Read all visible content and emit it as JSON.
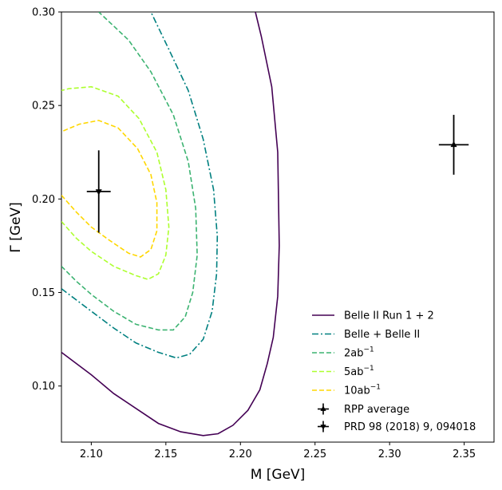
{
  "chart_data": {
    "type": "line",
    "xlabel": "M [GeV]",
    "ylabel": "Γ [GeV]",
    "xlim": [
      2.08,
      2.37
    ],
    "ylim": [
      0.07,
      0.3
    ],
    "xticks": [
      "2.10",
      "2.15",
      "2.20",
      "2.25",
      "2.30",
      "2.35"
    ],
    "xtick_values": [
      2.1,
      2.15,
      2.2,
      2.25,
      2.3,
      2.35
    ],
    "yticks": [
      "0.10",
      "0.15",
      "0.20",
      "0.25",
      "0.30"
    ],
    "ytick_values": [
      0.1,
      0.15,
      0.2,
      0.25,
      0.3
    ],
    "legend_position": "lower-right",
    "series": [
      {
        "name": "Belle II Run 1 + 2",
        "label_main": "Belle II Run 1 + 2",
        "label_sup": "",
        "color": "#440154",
        "dash": "solid",
        "points": [
          [
            2.08,
            0.118
          ],
          [
            2.1,
            0.106
          ],
          [
            2.115,
            0.096
          ],
          [
            2.13,
            0.088
          ],
          [
            2.145,
            0.08
          ],
          [
            2.16,
            0.0755
          ],
          [
            2.175,
            0.0735
          ],
          [
            2.185,
            0.0745
          ],
          [
            2.195,
            0.079
          ],
          [
            2.205,
            0.087
          ],
          [
            2.213,
            0.098
          ],
          [
            2.218,
            0.112
          ],
          [
            2.222,
            0.126
          ],
          [
            2.225,
            0.148
          ],
          [
            2.226,
            0.175
          ],
          [
            2.225,
            0.225
          ],
          [
            2.221,
            0.26
          ],
          [
            2.214,
            0.287
          ],
          [
            2.21,
            0.3
          ]
        ]
      },
      {
        "name": "Belle + Belle II",
        "label_main": "Belle + Belle II",
        "label_sup": "",
        "color": "#008080",
        "dash": "dashdot",
        "points": [
          [
            2.08,
            0.152
          ],
          [
            2.09,
            0.146
          ],
          [
            2.1,
            0.14
          ],
          [
            2.115,
            0.131
          ],
          [
            2.13,
            0.123
          ],
          [
            2.145,
            0.118
          ],
          [
            2.157,
            0.115
          ],
          [
            2.166,
            0.117
          ],
          [
            2.175,
            0.125
          ],
          [
            2.181,
            0.14
          ],
          [
            2.184,
            0.16
          ],
          [
            2.1845,
            0.18
          ],
          [
            2.182,
            0.205
          ],
          [
            2.175,
            0.232
          ],
          [
            2.165,
            0.258
          ],
          [
            2.152,
            0.28
          ],
          [
            2.14,
            0.3
          ]
        ]
      },
      {
        "name": "2ab^-1",
        "label_main": "2ab",
        "label_sup": "−1",
        "color": "#3cb371",
        "dash": "dashed",
        "points": [
          [
            2.08,
            0.164
          ],
          [
            2.09,
            0.156
          ],
          [
            2.1,
            0.149
          ],
          [
            2.115,
            0.14
          ],
          [
            2.13,
            0.133
          ],
          [
            2.145,
            0.13
          ],
          [
            2.155,
            0.13
          ],
          [
            2.163,
            0.137
          ],
          [
            2.168,
            0.15
          ],
          [
            2.171,
            0.17
          ],
          [
            2.17,
            0.195
          ],
          [
            2.165,
            0.22
          ],
          [
            2.155,
            0.245
          ],
          [
            2.14,
            0.268
          ],
          [
            2.125,
            0.285
          ],
          [
            2.105,
            0.3
          ]
        ]
      },
      {
        "name": "5ab^-1",
        "label_main": "5ab",
        "label_sup": "−1",
        "color": "#adff2f",
        "dash": "dashed",
        "points": [
          [
            2.08,
            0.188
          ],
          [
            2.09,
            0.179
          ],
          [
            2.1,
            0.172
          ],
          [
            2.115,
            0.164
          ],
          [
            2.13,
            0.159
          ],
          [
            2.138,
            0.157
          ],
          [
            2.145,
            0.16
          ],
          [
            2.15,
            0.17
          ],
          [
            2.152,
            0.185
          ],
          [
            2.15,
            0.205
          ],
          [
            2.144,
            0.225
          ],
          [
            2.132,
            0.243
          ],
          [
            2.118,
            0.255
          ],
          [
            2.1,
            0.26
          ],
          [
            2.085,
            0.259
          ],
          [
            2.08,
            0.258
          ]
        ]
      },
      {
        "name": "10ab^-1",
        "label_main": "10ab",
        "label_sup": "−1",
        "color": "#ffd700",
        "dash": "dashed",
        "points": [
          [
            2.08,
            0.202
          ],
          [
            2.09,
            0.193
          ],
          [
            2.1,
            0.185
          ],
          [
            2.112,
            0.178
          ],
          [
            2.125,
            0.171
          ],
          [
            2.133,
            0.169
          ],
          [
            2.14,
            0.173
          ],
          [
            2.144,
            0.183
          ],
          [
            2.144,
            0.198
          ],
          [
            2.14,
            0.213
          ],
          [
            2.131,
            0.227
          ],
          [
            2.118,
            0.238
          ],
          [
            2.105,
            0.242
          ],
          [
            2.092,
            0.24
          ],
          [
            2.08,
            0.236
          ]
        ]
      }
    ],
    "error_points": [
      {
        "name": "RPP average",
        "label_main": "RPP average",
        "marker": "triangle-up",
        "color": "#000000",
        "x": 2.343,
        "y": 0.229,
        "xerr": 0.01,
        "yerr": 0.016
      },
      {
        "name": "PRD 98 (2018) 9, 094018",
        "label_main": "PRD 98 (2018) 9, 094018",
        "marker": "triangle-down",
        "color": "#000000",
        "x": 2.105,
        "y": 0.204,
        "xerr": 0.008,
        "yerr": 0.022
      }
    ]
  }
}
